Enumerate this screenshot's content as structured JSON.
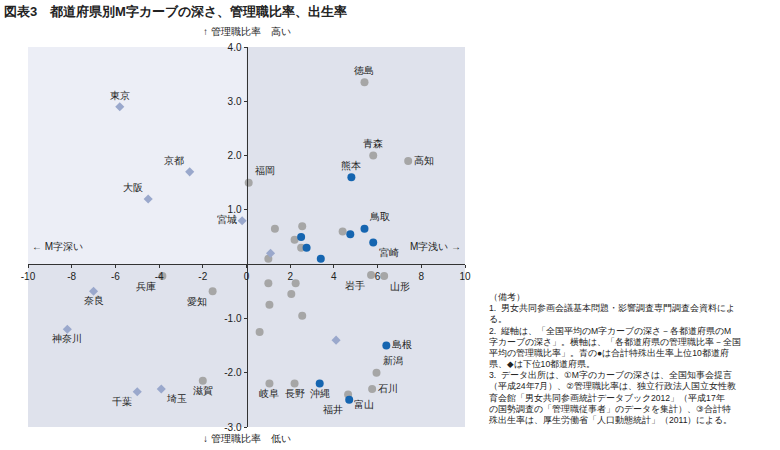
{
  "chart_data": {
    "type": "scatter",
    "title": "図表3　都道府県別M字カーブの深さ、管理職比率、出生率",
    "axis_labels": {
      "top": "↑ 管理職比率　高い",
      "bottom": "↓ 管理職比率　低い",
      "left": "← M字深い",
      "right": "M字浅い →"
    },
    "xlim": [
      -10,
      10
    ],
    "xticks": [
      -10,
      -8,
      -6,
      -4,
      -2,
      0,
      2,
      4,
      6,
      8,
      10
    ],
    "ylim": [
      -3,
      4
    ],
    "yticks": [
      {
        "value": -3,
        "label": "-3.0"
      },
      {
        "value": -2,
        "label": "-2.0"
      },
      {
        "value": -1,
        "label": "-1.0"
      },
      {
        "value": 1,
        "label": "1.0"
      },
      {
        "value": 2,
        "label": "2.0"
      },
      {
        "value": 3,
        "label": "3.0"
      },
      {
        "value": 4,
        "label": "4.0"
      }
    ],
    "grid": false,
    "series": [
      {
        "color": "#a6a6a6",
        "marker": "circle",
        "x": [
          5.4,
          5.8,
          7.4,
          0.1,
          5.7,
          6.3,
          -3.85,
          -1.55,
          -2.0,
          1.05,
          2.2,
          5.95,
          5.75,
          4.65,
          1.3,
          2.55,
          2.2,
          2.5,
          1.0,
          4.4,
          1.0,
          2.25,
          2.05,
          1.05,
          2.55,
          0.6
        ],
        "y": [
          3.35,
          2.0,
          1.9,
          1.5,
          -0.2,
          -0.22,
          -0.22,
          -0.5,
          -2.15,
          -2.2,
          -2.2,
          -2.0,
          -2.3,
          -2.4,
          0.65,
          0.7,
          0.45,
          0.3,
          0.1,
          0.6,
          -0.35,
          -0.35,
          -0.55,
          -0.75,
          -0.95,
          -1.25
        ],
        "labels": [
          "徳島",
          "青森",
          "高知",
          "福岡",
          "岩手",
          "山形",
          "兵庫",
          "愛知",
          "滋賀",
          "岐阜",
          "長野",
          "新潟",
          "石川",
          "富山",
          null,
          null,
          null,
          null,
          null,
          null,
          null,
          null,
          null,
          null,
          null,
          null
        ]
      },
      {
        "color": "#9aa8cc",
        "marker": "diamond",
        "x": [
          -5.8,
          -2.6,
          -4.5,
          -0.2,
          -7.0,
          -8.2,
          -5.0,
          -3.9,
          1.1,
          4.1
        ],
        "y": [
          2.9,
          1.7,
          1.2,
          0.8,
          -0.5,
          -1.2,
          -2.35,
          -2.3,
          0.2,
          -1.4
        ],
        "labels": [
          "東京",
          "京都",
          "大阪",
          "宮城",
          "奈良",
          "神奈川",
          "千葉",
          "埼玉",
          null,
          null
        ]
      },
      {
        "color": "#1565b0",
        "marker": "circle",
        "x": [
          4.8,
          5.4,
          5.8,
          6.4,
          3.35,
          4.7,
          4.75,
          2.5,
          2.75,
          3.4
        ],
        "y": [
          1.6,
          0.65,
          0.4,
          -1.5,
          -2.2,
          -2.5,
          0.55,
          0.5,
          0.3,
          0.1
        ],
        "labels": [
          "熊本",
          "鳥取",
          "宮崎",
          "島根",
          "沖縄",
          "福井",
          null,
          null,
          null,
          null
        ]
      }
    ],
    "notes": [
      "（備考）",
      "1.  男女共同参画会議基本問題・影響調査専門調査会資料によ",
      "る。",
      "2.  縦軸は、「全国平均のM字カーブの深さ－各都道府県のM",
      "字カーブの深さ」。横軸は、「各都道府県の管理職比率－全国",
      "平均の管理職比率」。青の●は合計特殊出生率上位10都道府",
      "県、◆は下位10都道府県。",
      "3.  データ出所は、①M字のカーブの深さは、全国知事会提言",
      "（平成24年7月）、②管理職比率は、独立行政法人国立女性教",
      "育会館「男女共同参画統計データブック2012」（平成17年",
      "の国勢調査の「管理職従事者」のデータを集計）、③合計特",
      "殊出生率は、厚生労働省「人口動態統計」（2011）による。"
    ]
  }
}
